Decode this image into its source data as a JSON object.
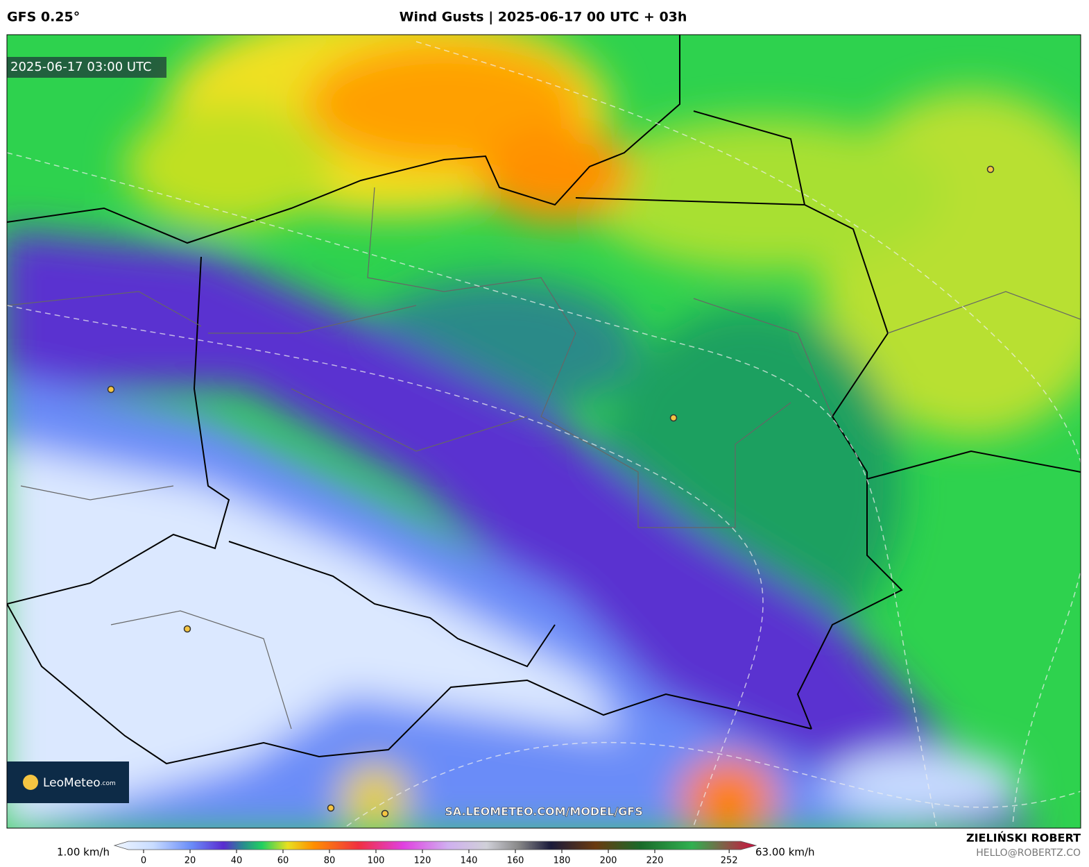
{
  "header": {
    "model": "GFS 0.25°",
    "title": "Wind Gusts | 2025-06-17 00 UTC + 03h"
  },
  "map": {
    "timestamp": "2025-06-17 03:00 UTC",
    "watermark": "SA.LEOMETEO.COM/MODEL/GFS",
    "logo": "LeoMeteo",
    "logo_suffix": ".com"
  },
  "colorbar": {
    "min_label": "1.00 km/h",
    "max_label": "63.00 km/h",
    "ticks": [
      0,
      20,
      40,
      60,
      80,
      100,
      120,
      140,
      160,
      180,
      200,
      220,
      252
    ]
  },
  "footer": {
    "author": "ZIELIŃSKI ROBERT",
    "email": "HELLO@ROBERTZ.CO"
  }
}
